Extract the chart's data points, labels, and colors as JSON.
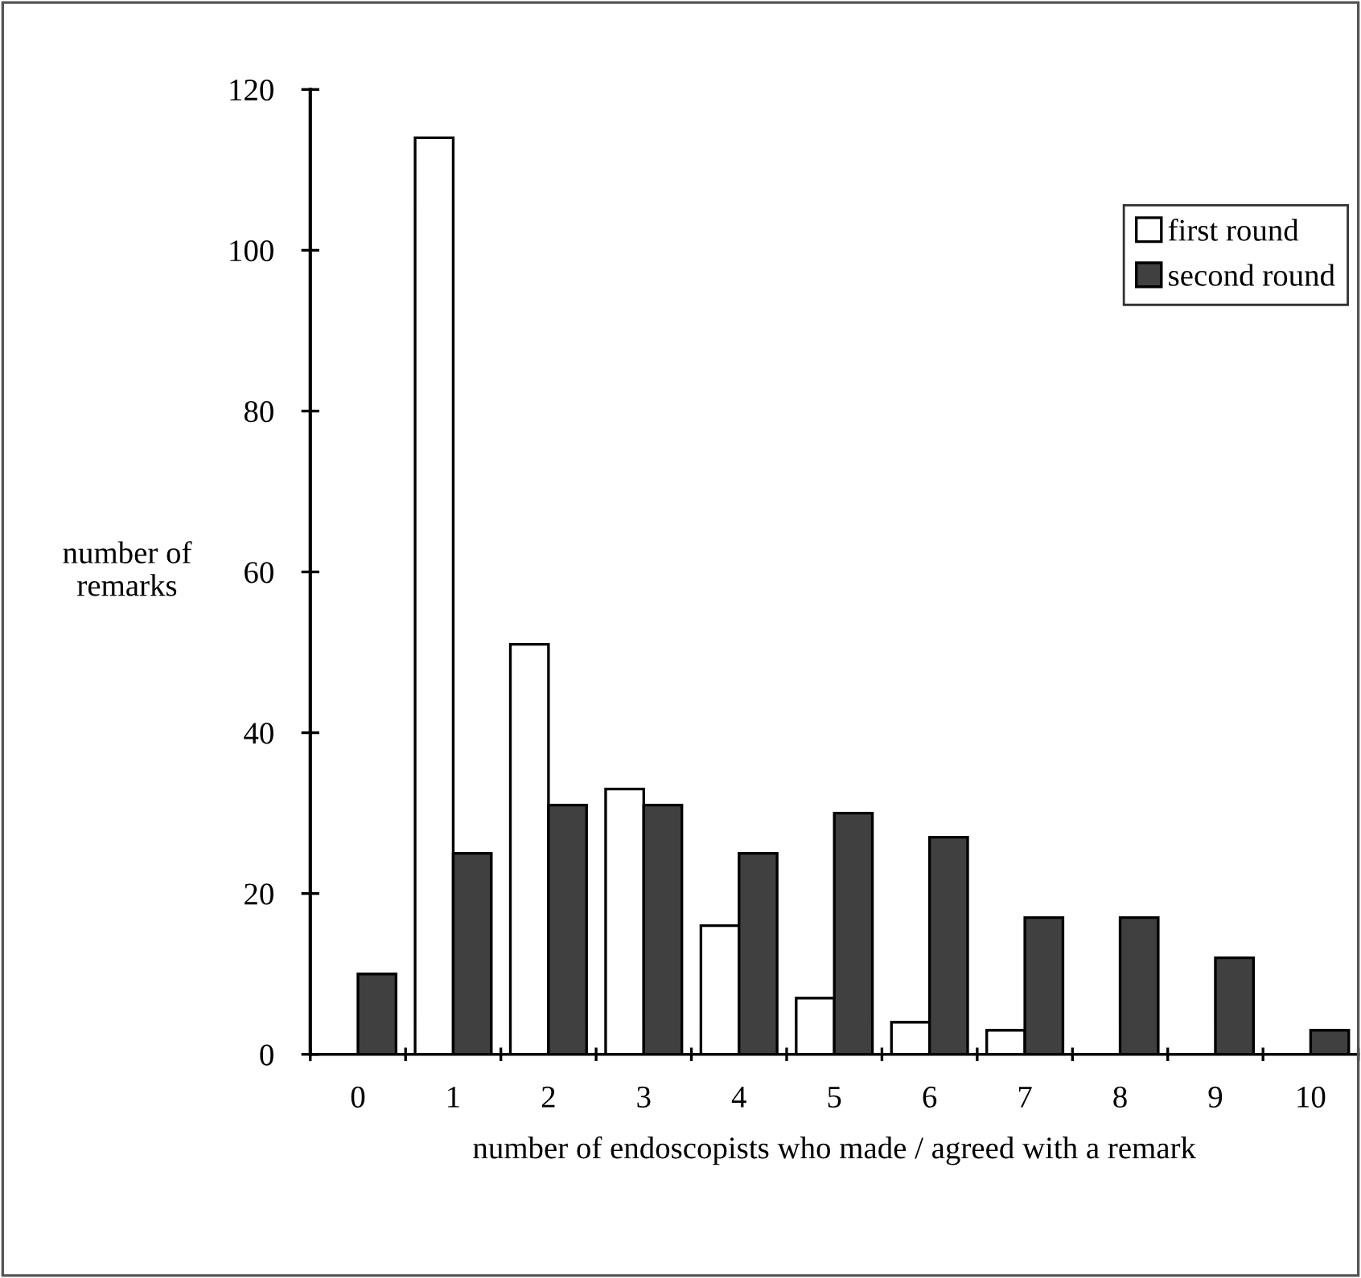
{
  "chart_data": {
    "type": "bar",
    "xlabel": "number of endoscopists who made / agreed with a remark",
    "ylabel": "number of\nremarks",
    "categories": [
      "0",
      "1",
      "2",
      "3",
      "4",
      "5",
      "6",
      "7",
      "8",
      "9",
      "10"
    ],
    "series": [
      {
        "name": "first round",
        "color": "#ffffff",
        "values": [
          0,
          114,
          51,
          33,
          16,
          7,
          4,
          3,
          0,
          0,
          0
        ]
      },
      {
        "name": "second round",
        "color": "#404040",
        "values": [
          10,
          25,
          31,
          31,
          25,
          30,
          27,
          17,
          17,
          12,
          3
        ]
      }
    ],
    "ylim": [
      0,
      120
    ],
    "yticks": [
      0,
      20,
      40,
      60,
      80,
      100,
      120
    ],
    "grid": false,
    "legend": "top right"
  }
}
